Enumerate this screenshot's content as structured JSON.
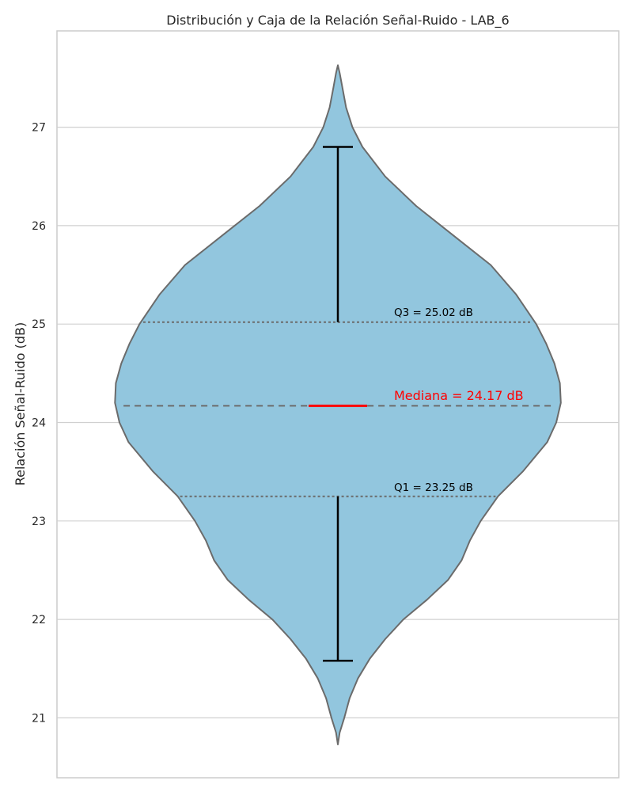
{
  "chart_data": {
    "type": "violin",
    "title": "Distribución y Caja de la Relación Señal-Ruido - LAB_6",
    "xlabel": "",
    "ylabel": "Relación Señal-Ruido (dB)",
    "ylim": [
      20.4,
      28.0
    ],
    "yticks": [
      21,
      22,
      23,
      24,
      25,
      26,
      27
    ],
    "grid": true,
    "stats": {
      "min": 20.73,
      "whisker_low": 21.58,
      "q1": 23.25,
      "median": 24.17,
      "q3": 25.02,
      "whisker_high": 26.8,
      "max": 27.63
    },
    "density": [
      [
        20.73,
        0.0
      ],
      [
        20.85,
        0.02
      ],
      [
        21.0,
        0.07
      ],
      [
        21.2,
        0.13
      ],
      [
        21.4,
        0.22
      ],
      [
        21.6,
        0.35
      ],
      [
        21.8,
        0.52
      ],
      [
        22.0,
        0.72
      ],
      [
        22.2,
        0.98
      ],
      [
        22.4,
        1.21
      ],
      [
        22.6,
        1.36
      ],
      [
        22.8,
        1.45
      ],
      [
        23.0,
        1.57
      ],
      [
        23.25,
        1.76
      ],
      [
        23.5,
        2.03
      ],
      [
        23.8,
        2.3
      ],
      [
        24.0,
        2.4
      ],
      [
        24.2,
        2.45
      ],
      [
        24.4,
        2.44
      ],
      [
        24.6,
        2.38
      ],
      [
        24.8,
        2.29
      ],
      [
        25.0,
        2.18
      ],
      [
        25.3,
        1.96
      ],
      [
        25.6,
        1.68
      ],
      [
        25.9,
        1.27
      ],
      [
        26.2,
        0.86
      ],
      [
        26.5,
        0.52
      ],
      [
        26.8,
        0.27
      ],
      [
        27.0,
        0.16
      ],
      [
        27.2,
        0.09
      ],
      [
        27.4,
        0.05
      ],
      [
        27.55,
        0.02
      ],
      [
        27.63,
        0.0
      ]
    ],
    "annotations": {
      "q3_label": "Q3 = 25.02 dB",
      "median_label": "Mediana = 24.17 dB",
      "q1_label": "Q1 = 23.25 dB"
    },
    "colors": {
      "violin_fill": "#92c6de",
      "violin_edge": "#6b6b6b",
      "median": "#ff0000",
      "whisker": "#000000",
      "grid": "#d0d0d0",
      "quartile_line": "#6b6b6b"
    }
  }
}
